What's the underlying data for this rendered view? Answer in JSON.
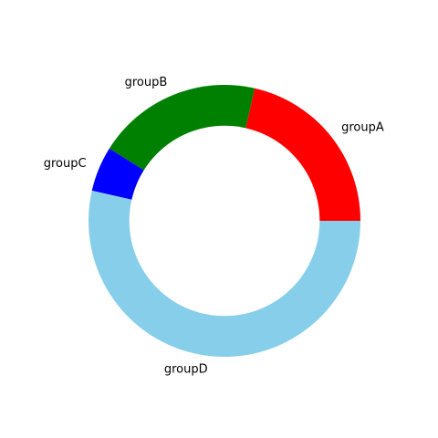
{
  "chart_data": {
    "type": "pie",
    "variant": "donut",
    "categories": [
      "groupA",
      "groupB",
      "groupC",
      "groupD"
    ],
    "values": [
      12,
      11,
      3,
      30
    ],
    "colors": [
      "#ff0000",
      "#008000",
      "#0000ff",
      "#87ceeb"
    ],
    "start_angle_deg": 0,
    "direction": "counterclockwise",
    "hole_fraction": 0.7,
    "legend": "none"
  }
}
